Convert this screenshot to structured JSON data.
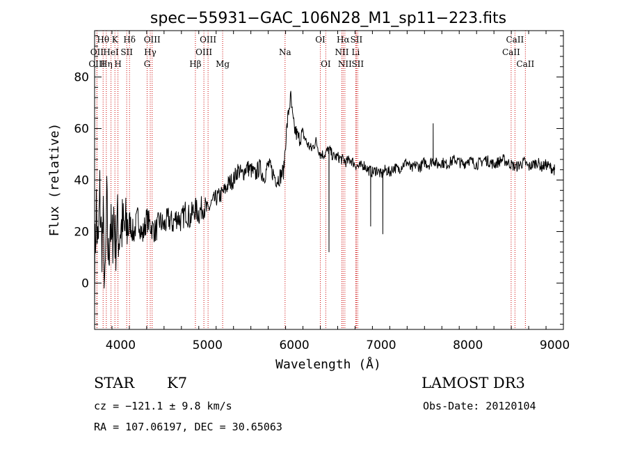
{
  "chart_data": {
    "type": "line",
    "title": "spec−55931−GAC_106N28_M1_sp11−223.fits",
    "xlabel": "Wavelength (Å)",
    "ylabel": "Flux (relative)",
    "xlim": [
      3700,
      9100
    ],
    "ylim": [
      -18,
      98
    ],
    "xticks": [
      4000,
      5000,
      6000,
      7000,
      8000,
      9000
    ],
    "yticks": [
      0,
      20,
      40,
      60,
      80
    ],
    "color": "#000000",
    "line_color": "#cc0000",
    "series": [
      {
        "name": "flux",
        "x": [
          3700,
          3720,
          3740,
          3760,
          3780,
          3800,
          3820,
          3840,
          3860,
          3880,
          3900,
          3920,
          3940,
          3960,
          3980,
          4000,
          4050,
          4100,
          4150,
          4200,
          4250,
          4300,
          4350,
          4400,
          4450,
          4500,
          4550,
          4600,
          4650,
          4700,
          4750,
          4800,
          4850,
          4900,
          4950,
          5000,
          5050,
          5100,
          5150,
          5200,
          5250,
          5300,
          5350,
          5400,
          5450,
          5500,
          5550,
          5600,
          5650,
          5700,
          5750,
          5800,
          5850,
          5880,
          5900,
          5920,
          5940,
          5960,
          5980,
          6000,
          6050,
          6100,
          6150,
          6200,
          6250,
          6300,
          6350,
          6400,
          6450,
          6500,
          6550,
          6600,
          6650,
          6700,
          6750,
          6800,
          6850,
          6900,
          6950,
          7000,
          7050,
          7100,
          7150,
          7200,
          7250,
          7300,
          7350,
          7400,
          7450,
          7500,
          7550,
          7600,
          7650,
          7700,
          7750,
          7800,
          7850,
          7900,
          7950,
          8000,
          8050,
          8100,
          8150,
          8200,
          8250,
          8300,
          8350,
          8400,
          8450,
          8500,
          8550,
          8600,
          8650,
          8700,
          8750,
          8800,
          8850,
          8900,
          8950,
          8990,
          9000
        ],
        "y": [
          5,
          30,
          10,
          35,
          15,
          22,
          -5,
          30,
          8,
          25,
          12,
          28,
          15,
          24,
          18,
          22,
          20,
          24,
          19,
          26,
          18,
          25,
          22,
          20,
          24,
          22,
          25,
          23,
          26,
          24,
          28,
          25,
          29,
          27,
          30,
          28,
          31,
          33,
          34,
          36,
          39,
          40,
          44,
          42,
          45,
          44,
          42,
          45,
          41,
          46,
          43,
          40,
          42,
          44,
          55,
          62,
          68,
          72,
          64,
          60,
          56,
          58,
          54,
          52,
          55,
          50,
          50,
          52,
          49,
          49,
          48,
          47,
          48,
          46,
          45,
          46,
          44,
          43,
          44,
          42,
          44,
          43,
          45,
          44,
          46,
          47,
          44,
          46,
          45,
          47,
          46,
          48,
          46,
          47,
          46,
          47,
          48,
          47,
          46,
          48,
          47,
          46,
          47,
          48,
          47,
          46,
          47,
          48,
          47,
          46,
          45,
          46,
          47,
          45,
          46,
          47,
          45,
          46,
          45,
          44,
          44
        ]
      }
    ],
    "spikes": [
      {
        "x": 6400,
        "y": 12
      },
      {
        "x": 6880,
        "y": 22
      },
      {
        "x": 7020,
        "y": 19
      },
      {
        "x": 7600,
        "y": 62
      }
    ],
    "lines": [
      {
        "label": "Hθ",
        "x": 3798,
        "row": 0
      },
      {
        "label": "OII",
        "x": 3727,
        "row": 1
      },
      {
        "label": "OIII",
        "x": 3727,
        "row": 2
      },
      {
        "label": "K",
        "x": 3934,
        "row": 0
      },
      {
        "label": "HeI",
        "x": 3889,
        "row": 1
      },
      {
        "label": "Hη",
        "x": 3835,
        "row": 2
      },
      {
        "label": "H",
        "x": 3969,
        "row": 2
      },
      {
        "label": "SII",
        "x": 4070,
        "row": 1
      },
      {
        "label": "Hδ",
        "x": 4102,
        "row": 0
      },
      {
        "label": "OIII",
        "x": 4363,
        "row": 0
      },
      {
        "label": "Hγ",
        "x": 4341,
        "row": 1
      },
      {
        "label": "G",
        "x": 4305,
        "row": 2
      },
      {
        "label": "OIII",
        "x": 5007,
        "row": 0
      },
      {
        "label": "OIII",
        "x": 4959,
        "row": 1
      },
      {
        "label": "Hβ",
        "x": 4861,
        "row": 2
      },
      {
        "label": "Mg",
        "x": 5175,
        "row": 2
      },
      {
        "label": "Na",
        "x": 5894,
        "row": 1
      },
      {
        "label": "OI",
        "x": 6300,
        "row": 0
      },
      {
        "label": "OI",
        "x": 6363,
        "row": 2
      },
      {
        "label": "Hα",
        "x": 6563,
        "row": 0
      },
      {
        "label": "SII",
        "x": 6716,
        "row": 0
      },
      {
        "label": "NII",
        "x": 6548,
        "row": 1
      },
      {
        "label": "Li",
        "x": 6708,
        "row": 1
      },
      {
        "label": "NII",
        "x": 6583,
        "row": 2
      },
      {
        "label": "SII",
        "x": 6731,
        "row": 2
      },
      {
        "label": "CaII",
        "x": 8542,
        "row": 0
      },
      {
        "label": "CaII",
        "x": 8498,
        "row": 1
      },
      {
        "label": "CaII",
        "x": 8662,
        "row": 2
      }
    ]
  },
  "info": {
    "object_class": "STAR",
    "subclass": "K7",
    "survey": "LAMOST DR3",
    "redshift": "cz = −121.1 ± 9.8 km/s",
    "obs_date": "Obs-Date: 20120104",
    "coords": "RA = 107.06197, DEC =  30.65063"
  }
}
